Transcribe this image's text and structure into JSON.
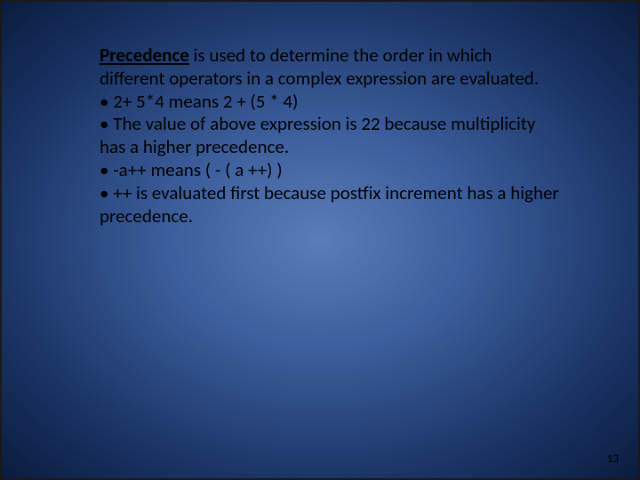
{
  "slide": {
    "background": {
      "gradient_center": "#5a7db8",
      "gradient_mid": "#3b5c9a",
      "gradient_outer": "#1c3668",
      "gradient_edge": "#0a1c3f"
    },
    "text_color": "#000000",
    "font_size": 21,
    "intro_bold": "Precedence",
    "intro_rest": " is used to determine the order in which different operators in a complex expression are evaluated.",
    "bullets": [
      "• 2+ 5*4 means 2 + (5 * 4)",
      "• The value of above expression is 22 because multiplicity has a higher precedence.",
      "• -a++ means ( - ( a ++) )",
      "• ++ is evaluated first because postfix increment has a higher precedence."
    ],
    "page_number": "13"
  }
}
